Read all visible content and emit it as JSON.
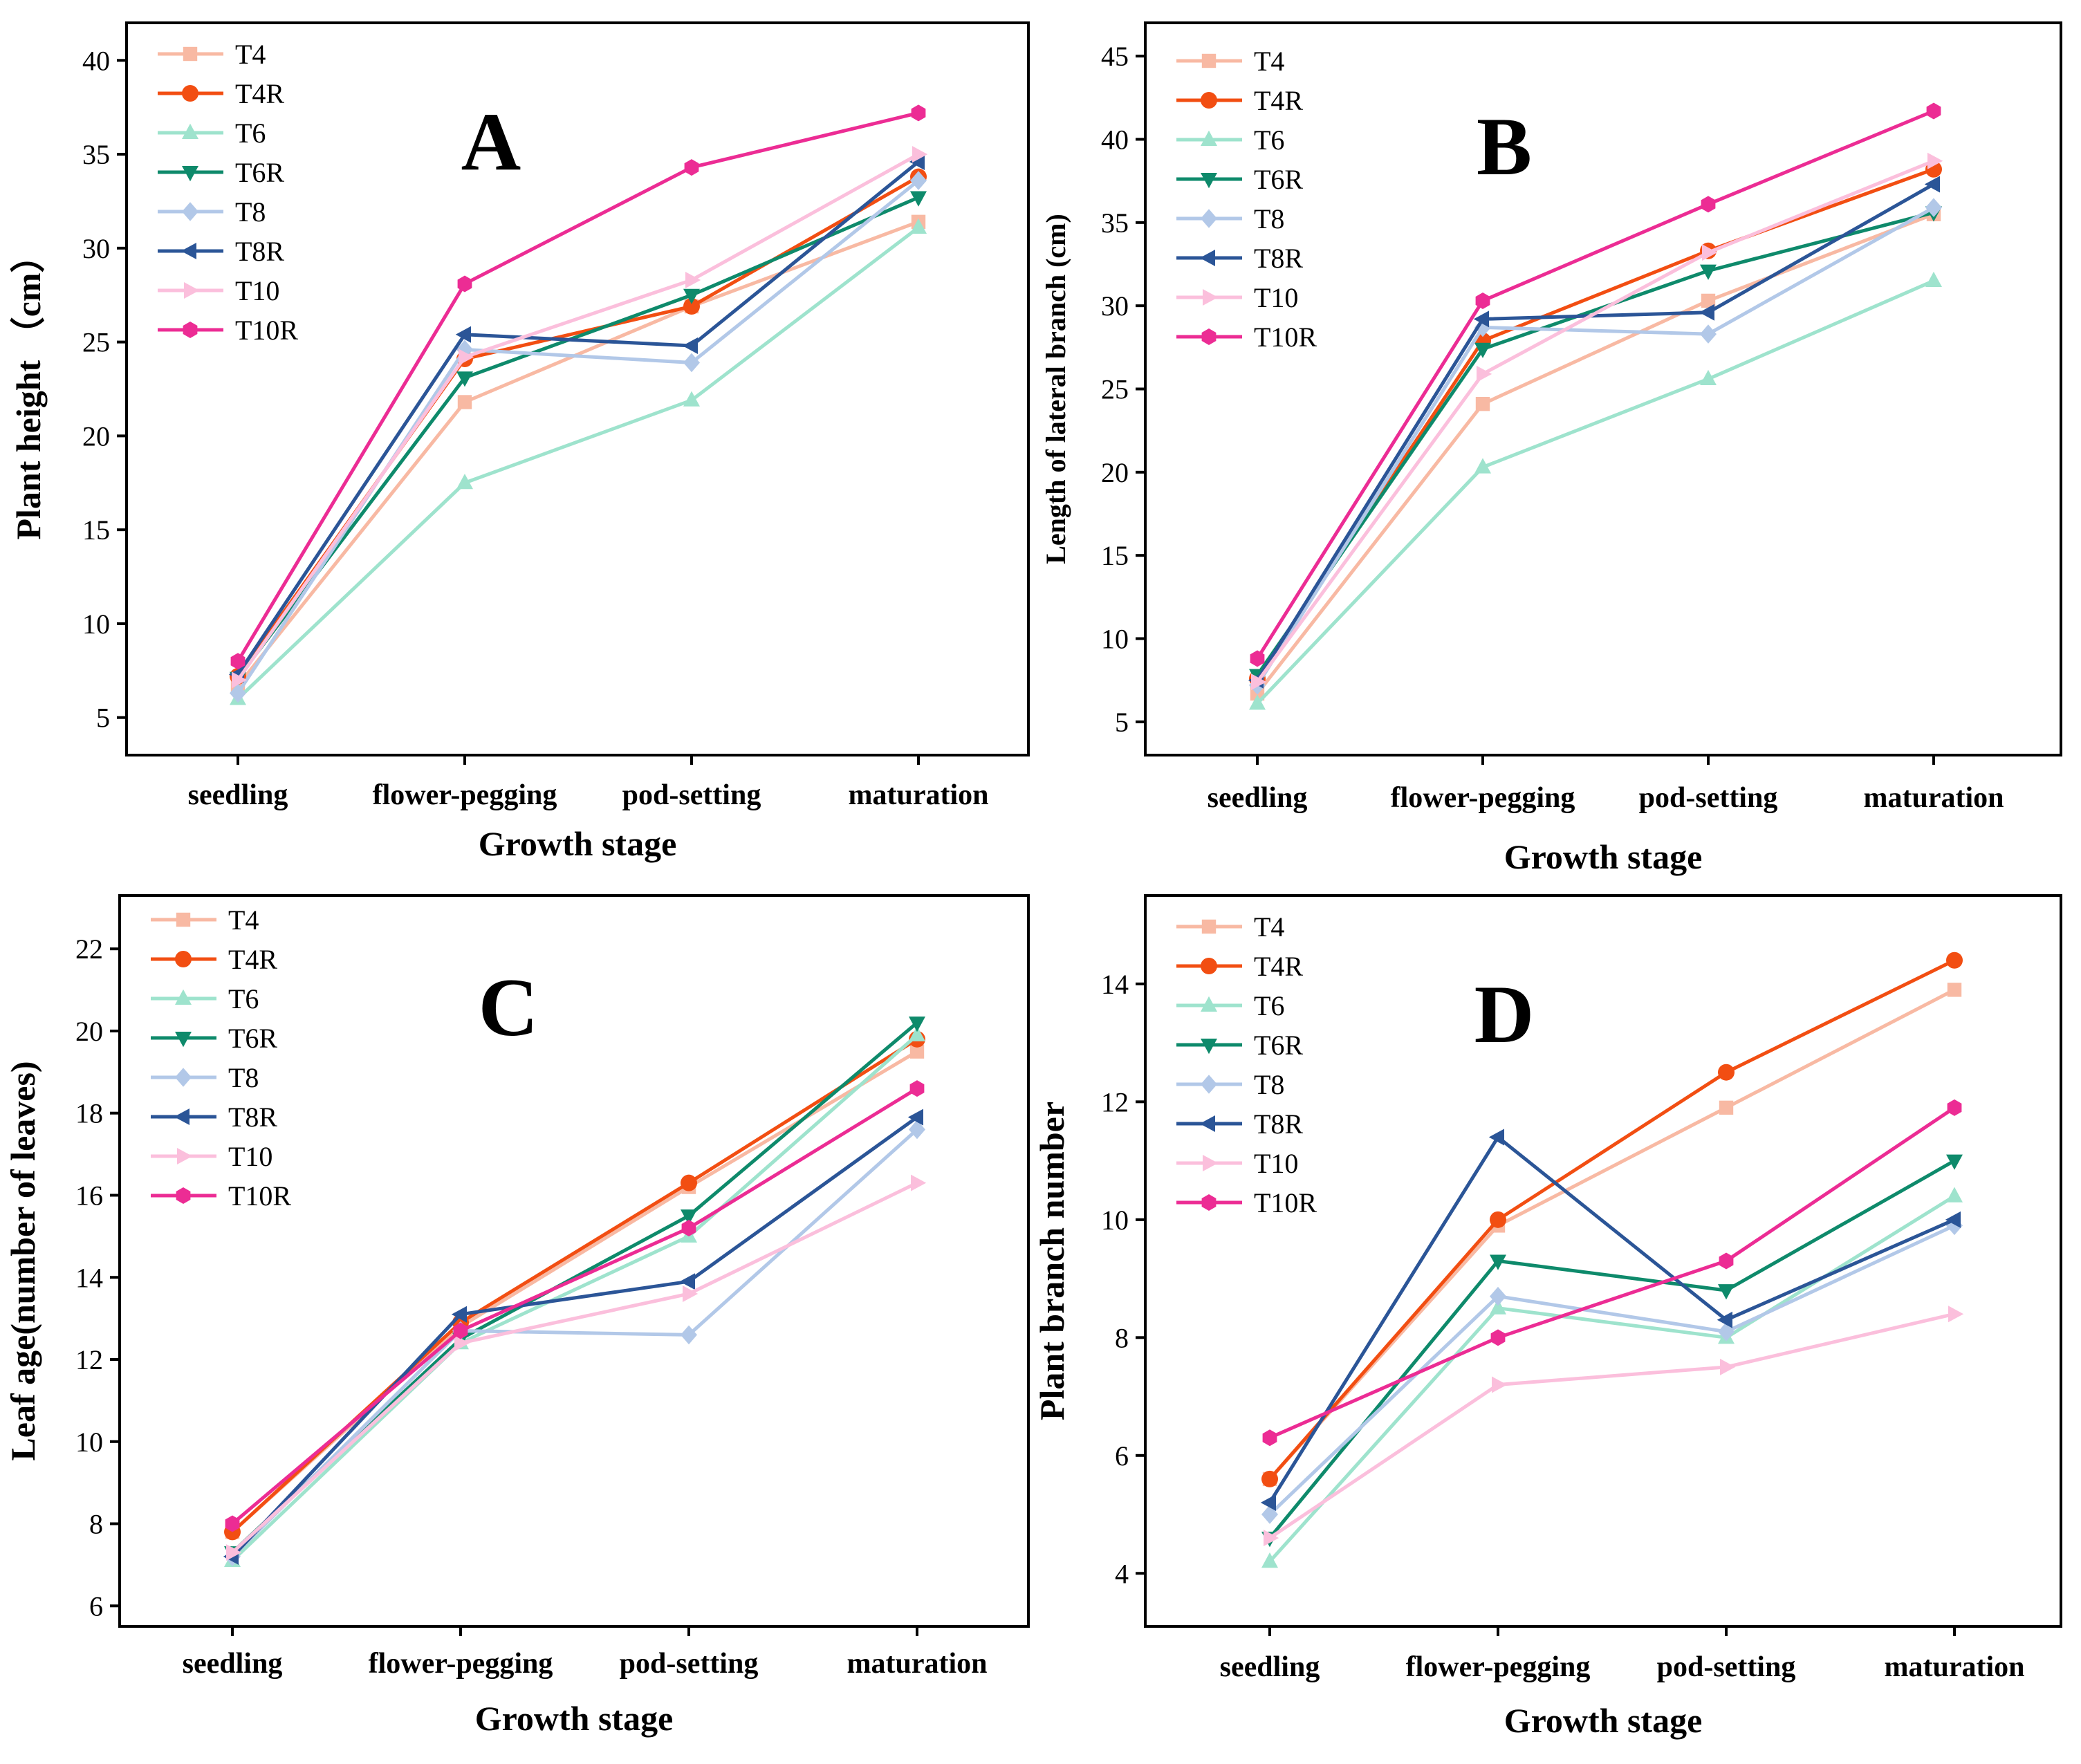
{
  "styles": {
    "T4": {
      "color": "#f8b9a3",
      "marker": "square"
    },
    "T4R": {
      "color": "#f24e12",
      "marker": "circle"
    },
    "T6": {
      "color": "#9ee3cd",
      "marker": "triangle-up"
    },
    "T6R": {
      "color": "#0e8a6b",
      "marker": "triangle-down"
    },
    "T8": {
      "color": "#b2c8e8",
      "marker": "diamond"
    },
    "T8R": {
      "color": "#2b5597",
      "marker": "triangle-left"
    },
    "T10": {
      "color": "#fbbfdc",
      "marker": "triangle-right"
    },
    "T10R": {
      "color": "#ec2c94",
      "marker": "hexagon"
    }
  },
  "chart_data": [
    {
      "panel_label": "A",
      "type": "line",
      "xlabel": "Growth stage",
      "ylabel": "Plant height （cm）",
      "categories": [
        "seedling",
        "flower-pegging",
        "pod-setting",
        "maturation"
      ],
      "ylim": [
        3,
        42
      ],
      "yticks": [
        5,
        10,
        15,
        20,
        25,
        30,
        35,
        40
      ],
      "legend_position": "top-left",
      "series": [
        {
          "name": "T4",
          "values": [
            6.7,
            21.8,
            26.9,
            31.4
          ]
        },
        {
          "name": "T4R",
          "values": [
            7.2,
            24.1,
            26.9,
            33.8
          ]
        },
        {
          "name": "T6",
          "values": [
            6.0,
            17.5,
            21.9,
            31.1
          ]
        },
        {
          "name": "T6R",
          "values": [
            7.1,
            23.1,
            27.5,
            32.7
          ]
        },
        {
          "name": "T8",
          "values": [
            6.3,
            24.6,
            23.9,
            33.6
          ]
        },
        {
          "name": "T8R",
          "values": [
            7.3,
            25.4,
            24.8,
            34.6
          ]
        },
        {
          "name": "T10",
          "values": [
            7.0,
            24.2,
            28.3,
            35.0
          ]
        },
        {
          "name": "T10R",
          "values": [
            8.0,
            28.1,
            34.3,
            37.2
          ]
        }
      ]
    },
    {
      "panel_label": "B",
      "type": "line",
      "xlabel": "Growth stage",
      "ylabel": "Length of lateral branch (cm)",
      "categories": [
        "seedling",
        "flower-pegging",
        "pod-setting",
        "maturation"
      ],
      "ylim": [
        3,
        47
      ],
      "yticks": [
        5,
        10,
        15,
        20,
        25,
        30,
        35,
        40,
        45
      ],
      "legend_position": "top-left",
      "series": [
        {
          "name": "T4",
          "values": [
            6.7,
            24.1,
            30.3,
            35.5
          ]
        },
        {
          "name": "T4R",
          "values": [
            7.6,
            27.9,
            33.3,
            38.2
          ]
        },
        {
          "name": "T6",
          "values": [
            6.1,
            20.3,
            25.6,
            31.5
          ]
        },
        {
          "name": "T6R",
          "values": [
            7.8,
            27.4,
            32.1,
            35.6
          ]
        },
        {
          "name": "T8",
          "values": [
            7.2,
            28.7,
            28.3,
            35.9
          ]
        },
        {
          "name": "T8R",
          "values": [
            7.5,
            29.2,
            29.6,
            37.3
          ]
        },
        {
          "name": "T10",
          "values": [
            7.4,
            25.9,
            33.2,
            38.7
          ]
        },
        {
          "name": "T10R",
          "values": [
            8.8,
            30.3,
            36.1,
            41.7
          ]
        }
      ]
    },
    {
      "panel_label": "C",
      "type": "line",
      "xlabel": "Growth stage",
      "ylabel": "Leaf age(number of leaves)",
      "categories": [
        "seedling",
        "flower-pegging",
        "pod-setting",
        "maturation"
      ],
      "ylim": [
        5.5,
        23.3
      ],
      "yticks": [
        6,
        8,
        10,
        12,
        14,
        16,
        18,
        20,
        22
      ],
      "legend_position": "top-left",
      "series": [
        {
          "name": "T4",
          "values": [
            7.8,
            12.8,
            16.2,
            19.5
          ]
        },
        {
          "name": "T4R",
          "values": [
            7.8,
            12.9,
            16.3,
            19.8
          ]
        },
        {
          "name": "T6",
          "values": [
            7.1,
            12.4,
            15.0,
            19.9
          ]
        },
        {
          "name": "T6R",
          "values": [
            7.3,
            12.5,
            15.5,
            20.2
          ]
        },
        {
          "name": "T8",
          "values": [
            7.2,
            12.7,
            12.6,
            17.6
          ]
        },
        {
          "name": "T8R",
          "values": [
            7.2,
            13.1,
            13.9,
            17.9
          ]
        },
        {
          "name": "T10",
          "values": [
            7.3,
            12.4,
            13.6,
            16.3
          ]
        },
        {
          "name": "T10R",
          "values": [
            8.0,
            12.7,
            15.2,
            18.6
          ]
        }
      ]
    },
    {
      "panel_label": "D",
      "type": "line",
      "xlabel": "Growth stage",
      "ylabel": "Plant branch number",
      "categories": [
        "seedling",
        "flower-pegging",
        "pod-setting",
        "maturation"
      ],
      "ylim": [
        3.1,
        15.5
      ],
      "yticks": [
        4,
        6,
        8,
        10,
        12,
        14
      ],
      "legend_position": "top-left",
      "series": [
        {
          "name": "T4",
          "values": [
            5.6,
            9.9,
            11.9,
            13.9
          ]
        },
        {
          "name": "T4R",
          "values": [
            5.6,
            10.0,
            12.5,
            14.4
          ]
        },
        {
          "name": "T6",
          "values": [
            4.2,
            8.5,
            8.0,
            10.4
          ]
        },
        {
          "name": "T6R",
          "values": [
            4.6,
            9.3,
            8.8,
            11.0
          ]
        },
        {
          "name": "T8",
          "values": [
            5.0,
            8.7,
            8.1,
            9.9
          ]
        },
        {
          "name": "T8R",
          "values": [
            5.2,
            11.4,
            8.3,
            10.0
          ]
        },
        {
          "name": "T10",
          "values": [
            4.6,
            7.2,
            7.5,
            8.4
          ]
        },
        {
          "name": "T10R",
          "values": [
            6.3,
            8.0,
            9.3,
            11.9
          ]
        }
      ]
    }
  ]
}
